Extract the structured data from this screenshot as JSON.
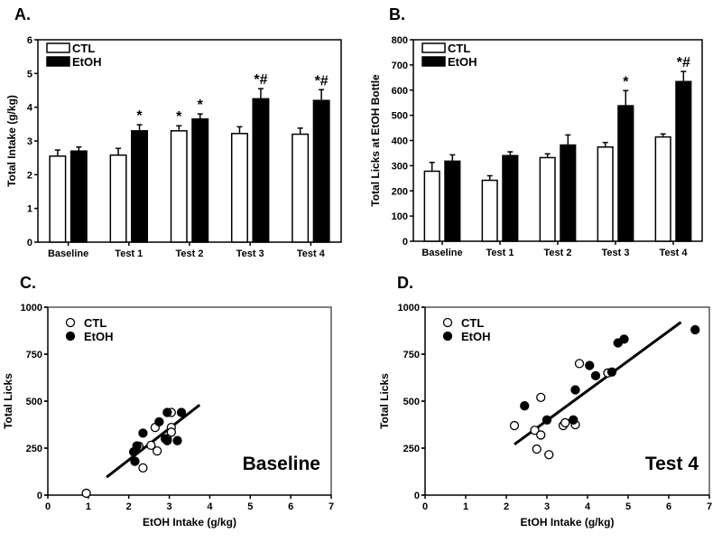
{
  "chart_data": [
    {
      "panel_label": "A.",
      "type": "bar",
      "ylabel": "Total Intake (g/kg)",
      "xlabel": "",
      "ylim": [
        0,
        6
      ],
      "yticks": [
        0,
        1,
        2,
        3,
        4,
        5,
        6
      ],
      "categories": [
        "Baseline",
        "Test 1",
        "Test 2",
        "Test 3",
        "Test 4"
      ],
      "series": [
        {
          "name": "CTL",
          "fill": "#ffffff",
          "values": [
            2.55,
            2.58,
            3.3,
            3.22,
            3.2
          ],
          "errors": [
            0.18,
            0.2,
            0.15,
            0.2,
            0.18
          ],
          "annotations": [
            "",
            "",
            "*",
            "",
            ""
          ]
        },
        {
          "name": "EtOH",
          "fill": "#000000",
          "values": [
            2.7,
            3.3,
            3.65,
            4.25,
            4.2
          ],
          "errors": [
            0.12,
            0.18,
            0.15,
            0.3,
            0.32
          ],
          "annotations": [
            "",
            "*",
            "*",
            "*#",
            "*#"
          ]
        }
      ],
      "legend": "top-left"
    },
    {
      "panel_label": "B.",
      "type": "bar",
      "ylabel": "Total Licks at EtOH Bottle",
      "xlabel": "",
      "ylim": [
        0,
        800
      ],
      "yticks": [
        0,
        100,
        200,
        300,
        400,
        500,
        600,
        700,
        800
      ],
      "categories": [
        "Baseline",
        "Test 1",
        "Test 2",
        "Test 3",
        "Test 4"
      ],
      "series": [
        {
          "name": "CTL",
          "fill": "#ffffff",
          "values": [
            278,
            242,
            332,
            374,
            414
          ],
          "errors": [
            35,
            18,
            15,
            18,
            12
          ],
          "annotations": [
            "",
            "",
            "",
            "",
            ""
          ]
        },
        {
          "name": "EtOH",
          "fill": "#000000",
          "values": [
            318,
            340,
            382,
            538,
            634
          ],
          "errors": [
            25,
            15,
            40,
            60,
            40
          ],
          "annotations": [
            "",
            "",
            "",
            "*",
            "*#"
          ]
        }
      ],
      "legend": "top-left"
    },
    {
      "panel_label": "C.",
      "type": "scatter",
      "annotation": "Baseline",
      "xlabel": "EtOH Intake (g/kg)",
      "ylabel": "Total Licks",
      "xlim": [
        0,
        7
      ],
      "ylim": [
        0,
        1000
      ],
      "xticks": [
        0,
        1,
        2,
        3,
        4,
        5,
        6,
        7
      ],
      "yticks": [
        0,
        250,
        500,
        750,
        1000
      ],
      "series": [
        {
          "name": "CTL",
          "fill": "#ffffff",
          "points": [
            [
              0.95,
              10
            ],
            [
              2.35,
              145
            ],
            [
              2.7,
              235
            ],
            [
              2.55,
              265
            ],
            [
              2.25,
              260
            ],
            [
              2.65,
              360
            ],
            [
              3.05,
              440
            ],
            [
              3.05,
              360
            ],
            [
              3.05,
              335
            ],
            [
              2.95,
              300
            ]
          ]
        },
        {
          "name": "EtOH",
          "fill": "#000000",
          "points": [
            [
              2.15,
              180
            ],
            [
              2.12,
              230
            ],
            [
              2.2,
              262
            ],
            [
              2.35,
              330
            ],
            [
              2.75,
              390
            ],
            [
              2.95,
              440
            ],
            [
              2.9,
              300
            ],
            [
              2.95,
              290
            ],
            [
              3.2,
              290
            ],
            [
              3.3,
              440
            ]
          ]
        }
      ],
      "fit_line": [
        [
          1.45,
          95
        ],
        [
          3.75,
          480
        ]
      ],
      "legend": "top-left"
    },
    {
      "panel_label": "D.",
      "type": "scatter",
      "annotation": "Test 4",
      "xlabel": "EtOH Intake (g/kg)",
      "ylabel": "Total Licks",
      "xlim": [
        0,
        7
      ],
      "ylim": [
        0,
        1000
      ],
      "xticks": [
        0,
        1,
        2,
        3,
        4,
        5,
        6,
        7
      ],
      "yticks": [
        0,
        250,
        500,
        750,
        1000
      ],
      "series": [
        {
          "name": "CTL",
          "fill": "#ffffff",
          "points": [
            [
              2.2,
              370
            ],
            [
              2.7,
              345
            ],
            [
              2.85,
              320
            ],
            [
              2.75,
              245
            ],
            [
              3.05,
              215
            ],
            [
              2.85,
              520
            ],
            [
              3.4,
              370
            ],
            [
              3.45,
              385
            ],
            [
              3.7,
              375
            ],
            [
              3.8,
              700
            ],
            [
              4.5,
              650
            ]
          ]
        },
        {
          "name": "EtOH",
          "fill": "#000000",
          "points": [
            [
              2.45,
              475
            ],
            [
              3.0,
              400
            ],
            [
              3.65,
              400
            ],
            [
              3.7,
              560
            ],
            [
              4.05,
              690
            ],
            [
              4.2,
              635
            ],
            [
              4.6,
              655
            ],
            [
              4.75,
              810
            ],
            [
              4.9,
              830
            ],
            [
              6.65,
              880
            ]
          ]
        }
      ],
      "fit_line": [
        [
          2.2,
          270
        ],
        [
          6.3,
          920
        ]
      ],
      "legend": "top-left"
    }
  ]
}
